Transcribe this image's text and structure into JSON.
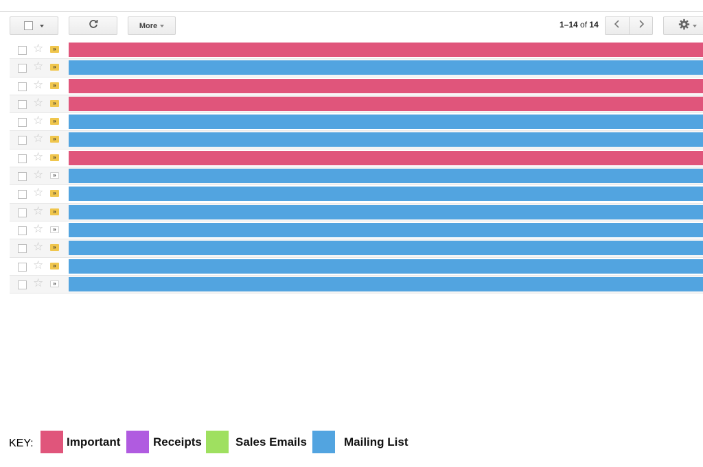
{
  "toolbar": {
    "more_label": "More",
    "refresh_icon": "refresh-icon",
    "settings_icon": "gear-icon"
  },
  "pagination": {
    "range": "1–14",
    "of_label": "of",
    "total": "14"
  },
  "categories": {
    "important": "#e0557b",
    "mailing": "#52a4e0"
  },
  "emails": [
    {
      "category": "important",
      "marker": "on"
    },
    {
      "category": "mailing",
      "marker": "on"
    },
    {
      "category": "important",
      "marker": "on"
    },
    {
      "category": "important",
      "marker": "on"
    },
    {
      "category": "mailing",
      "marker": "on"
    },
    {
      "category": "mailing",
      "marker": "on"
    },
    {
      "category": "important",
      "marker": "on"
    },
    {
      "category": "mailing",
      "marker": "off"
    },
    {
      "category": "mailing",
      "marker": "on"
    },
    {
      "category": "mailing",
      "marker": "on"
    },
    {
      "category": "mailing",
      "marker": "off"
    },
    {
      "category": "mailing",
      "marker": "on"
    },
    {
      "category": "mailing",
      "marker": "on"
    },
    {
      "category": "mailing",
      "marker": "off"
    }
  ],
  "key": {
    "title": "KEY:",
    "items": [
      {
        "label": "Important",
        "color": "#e0557b"
      },
      {
        "label": "Receipts",
        "color": "#b05be0"
      },
      {
        "label": "Sales Emails",
        "color": "#9fe060"
      },
      {
        "label": "Mailing List",
        "color": "#52a4e0"
      }
    ]
  }
}
